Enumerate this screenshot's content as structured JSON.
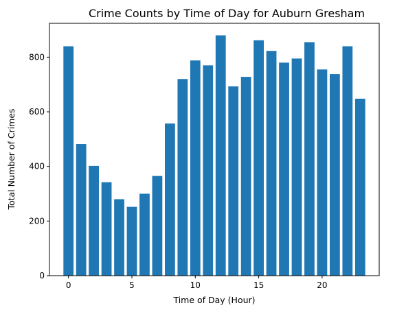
{
  "chart_data": {
    "type": "bar",
    "title": "Crime Counts by Time of Day for Auburn Gresham",
    "xlabel": "Time of Day (Hour)",
    "ylabel": "Total Number of Crimes",
    "x": [
      0,
      1,
      2,
      3,
      4,
      5,
      6,
      7,
      8,
      9,
      10,
      11,
      12,
      13,
      14,
      15,
      16,
      17,
      18,
      19,
      20,
      21,
      22,
      23
    ],
    "values": [
      840,
      482,
      402,
      342,
      280,
      252,
      300,
      365,
      557,
      720,
      788,
      770,
      880,
      693,
      728,
      862,
      823,
      780,
      795,
      855,
      755,
      738,
      840,
      648
    ],
    "xlim": [
      -1.5,
      24.5
    ],
    "ylim": [
      0,
      924
    ],
    "xticks": [
      0,
      5,
      10,
      15,
      20
    ],
    "yticks": [
      0,
      200,
      400,
      600,
      800
    ],
    "bar_color": "#1f77b4",
    "grid": false,
    "legend": false
  }
}
